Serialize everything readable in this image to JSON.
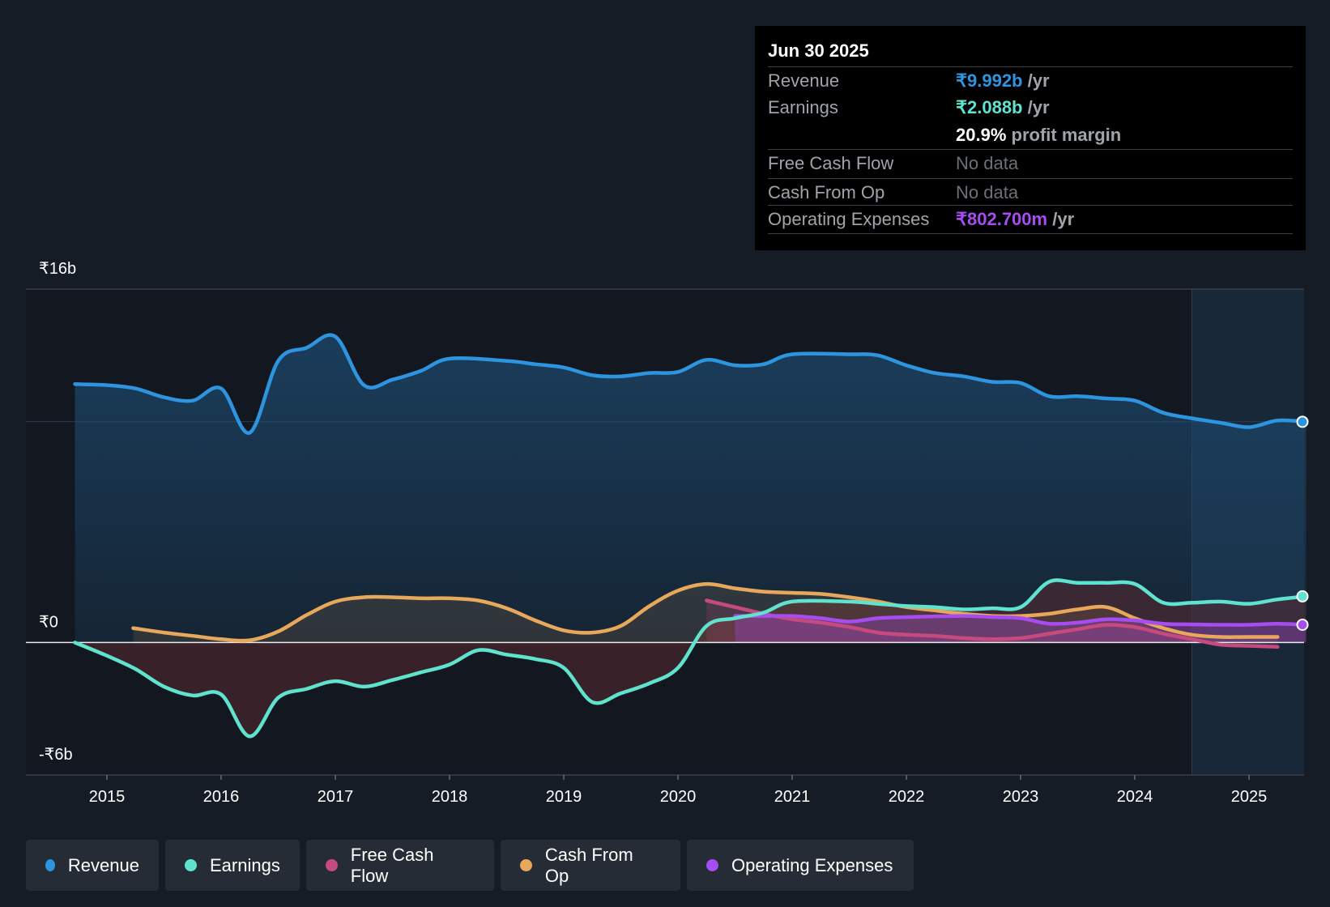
{
  "tooltip": {
    "date": "Jun 30 2025",
    "rows": [
      {
        "label": "Revenue",
        "value": "₹9.992b",
        "unit": "/yr",
        "color": "#2d95e0"
      },
      {
        "label": "Earnings",
        "value": "₹2.088b",
        "unit": "/yr",
        "color": "#5fe3cf"
      },
      {
        "label": "",
        "value": "20.9%",
        "unit": "profit margin",
        "color": "#ffffff"
      },
      {
        "label": "Free Cash Flow",
        "value": "No data",
        "unit": ""
      },
      {
        "label": "Cash From Op",
        "value": "No data",
        "unit": ""
      },
      {
        "label": "Operating Expenses",
        "value": "₹802.700m",
        "unit": "/yr",
        "color": "#a64cf0"
      }
    ]
  },
  "legend": [
    {
      "label": "Revenue",
      "color": "#2d95e0"
    },
    {
      "label": "Earnings",
      "color": "#5fe3cf"
    },
    {
      "label": "Free Cash Flow",
      "color": "#c74a7e"
    },
    {
      "label": "Cash From Op",
      "color": "#e8a85b"
    },
    {
      "label": "Operating Expenses",
      "color": "#a64cf0"
    }
  ],
  "chart_data": {
    "type": "line",
    "y_tick_labels": [
      "₹16b",
      "₹0",
      "-₹6b"
    ],
    "ylim": [
      -6,
      16
    ],
    "xlim": [
      2014.55,
      2025.5
    ],
    "x_ticks": [
      2015,
      2016,
      2017,
      2018,
      2019,
      2020,
      2021,
      2022,
      2023,
      2024,
      2025
    ],
    "x_tick_labels": [
      "2015",
      "2016",
      "2017",
      "2018",
      "2019",
      "2020",
      "2021",
      "2022",
      "2023",
      "2024",
      "2025"
    ],
    "forecast_region_start": 2024.5,
    "series": [
      {
        "name": "Revenue",
        "color": "#2d95e0",
        "points": [
          [
            2014.72,
            11.7
          ],
          [
            2015.0,
            11.65
          ],
          [
            2015.25,
            11.5
          ],
          [
            2015.5,
            11.1
          ],
          [
            2015.75,
            10.95
          ],
          [
            2016.0,
            11.5
          ],
          [
            2016.25,
            9.5
          ],
          [
            2016.5,
            12.75
          ],
          [
            2016.75,
            13.35
          ],
          [
            2017.0,
            13.85
          ],
          [
            2017.25,
            11.65
          ],
          [
            2017.5,
            11.9
          ],
          [
            2017.75,
            12.3
          ],
          [
            2018.0,
            12.85
          ],
          [
            2018.5,
            12.75
          ],
          [
            2018.75,
            12.6
          ],
          [
            2019.0,
            12.45
          ],
          [
            2019.25,
            12.1
          ],
          [
            2019.5,
            12.05
          ],
          [
            2019.75,
            12.2
          ],
          [
            2020.0,
            12.25
          ],
          [
            2020.25,
            12.8
          ],
          [
            2020.5,
            12.55
          ],
          [
            2020.75,
            12.6
          ],
          [
            2021.0,
            13.05
          ],
          [
            2021.5,
            13.05
          ],
          [
            2021.75,
            13.0
          ],
          [
            2022.0,
            12.55
          ],
          [
            2022.25,
            12.2
          ],
          [
            2022.5,
            12.05
          ],
          [
            2022.75,
            11.8
          ],
          [
            2023.0,
            11.75
          ],
          [
            2023.25,
            11.15
          ],
          [
            2023.5,
            11.15
          ],
          [
            2023.75,
            11.05
          ],
          [
            2024.0,
            10.95
          ],
          [
            2024.25,
            10.4
          ],
          [
            2024.5,
            10.15
          ],
          [
            2024.75,
            9.95
          ],
          [
            2025.0,
            9.75
          ],
          [
            2025.25,
            10.05
          ],
          [
            2025.5,
            9.992
          ]
        ]
      },
      {
        "name": "Earnings",
        "color": "#5fe3cf",
        "points": [
          [
            2014.72,
            0.0
          ],
          [
            2015.0,
            -0.6
          ],
          [
            2015.25,
            -1.2
          ],
          [
            2015.5,
            -2.0
          ],
          [
            2015.75,
            -2.4
          ],
          [
            2016.0,
            -2.35
          ],
          [
            2016.25,
            -4.25
          ],
          [
            2016.5,
            -2.5
          ],
          [
            2016.75,
            -2.1
          ],
          [
            2017.0,
            -1.75
          ],
          [
            2017.25,
            -2.0
          ],
          [
            2017.5,
            -1.7
          ],
          [
            2017.75,
            -1.35
          ],
          [
            2018.0,
            -1.0
          ],
          [
            2018.25,
            -0.35
          ],
          [
            2018.5,
            -0.55
          ],
          [
            2018.75,
            -0.75
          ],
          [
            2019.0,
            -1.15
          ],
          [
            2019.25,
            -2.7
          ],
          [
            2019.5,
            -2.3
          ],
          [
            2019.75,
            -1.85
          ],
          [
            2020.0,
            -1.15
          ],
          [
            2020.25,
            0.75
          ],
          [
            2020.5,
            1.1
          ],
          [
            2020.75,
            1.35
          ],
          [
            2021.0,
            1.85
          ],
          [
            2021.5,
            1.85
          ],
          [
            2021.75,
            1.75
          ],
          [
            2022.0,
            1.65
          ],
          [
            2022.25,
            1.6
          ],
          [
            2022.5,
            1.5
          ],
          [
            2022.75,
            1.55
          ],
          [
            2023.0,
            1.6
          ],
          [
            2023.25,
            2.75
          ],
          [
            2023.5,
            2.7
          ],
          [
            2023.75,
            2.7
          ],
          [
            2024.0,
            2.65
          ],
          [
            2024.25,
            1.8
          ],
          [
            2024.5,
            1.8
          ],
          [
            2024.75,
            1.85
          ],
          [
            2025.0,
            1.75
          ],
          [
            2025.25,
            1.95
          ],
          [
            2025.5,
            2.088
          ]
        ]
      },
      {
        "name": "Free Cash Flow",
        "color": "#c74a7e",
        "points": [
          [
            2020.25,
            1.9
          ],
          [
            2020.5,
            1.6
          ],
          [
            2020.75,
            1.3
          ],
          [
            2021.0,
            1.05
          ],
          [
            2021.25,
            0.9
          ],
          [
            2021.5,
            0.7
          ],
          [
            2021.75,
            0.45
          ],
          [
            2022.0,
            0.35
          ],
          [
            2022.25,
            0.3
          ],
          [
            2022.5,
            0.2
          ],
          [
            2022.75,
            0.15
          ],
          [
            2023.0,
            0.2
          ],
          [
            2023.25,
            0.4
          ],
          [
            2023.5,
            0.6
          ],
          [
            2023.75,
            0.8
          ],
          [
            2024.0,
            0.7
          ],
          [
            2024.25,
            0.4
          ],
          [
            2024.5,
            0.15
          ],
          [
            2024.75,
            -0.1
          ],
          [
            2025.0,
            -0.15
          ],
          [
            2025.25,
            -0.2
          ]
        ]
      },
      {
        "name": "Cash From Op",
        "color": "#e8a85b",
        "points": [
          [
            2015.23,
            0.65
          ],
          [
            2015.5,
            0.45
          ],
          [
            2015.75,
            0.3
          ],
          [
            2016.0,
            0.15
          ],
          [
            2016.25,
            0.1
          ],
          [
            2016.5,
            0.5
          ],
          [
            2016.75,
            1.25
          ],
          [
            2017.0,
            1.85
          ],
          [
            2017.25,
            2.05
          ],
          [
            2017.5,
            2.05
          ],
          [
            2017.75,
            2.0
          ],
          [
            2018.0,
            2.0
          ],
          [
            2018.25,
            1.9
          ],
          [
            2018.5,
            1.55
          ],
          [
            2018.75,
            1.0
          ],
          [
            2019.0,
            0.55
          ],
          [
            2019.25,
            0.45
          ],
          [
            2019.5,
            0.75
          ],
          [
            2019.75,
            1.65
          ],
          [
            2020.0,
            2.35
          ],
          [
            2020.25,
            2.65
          ],
          [
            2020.5,
            2.45
          ],
          [
            2020.75,
            2.3
          ],
          [
            2021.0,
            2.25
          ],
          [
            2021.25,
            2.2
          ],
          [
            2021.5,
            2.05
          ],
          [
            2021.75,
            1.85
          ],
          [
            2022.0,
            1.6
          ],
          [
            2022.25,
            1.45
          ],
          [
            2022.5,
            1.3
          ],
          [
            2022.75,
            1.2
          ],
          [
            2023.0,
            1.2
          ],
          [
            2023.25,
            1.3
          ],
          [
            2023.5,
            1.5
          ],
          [
            2023.75,
            1.6
          ],
          [
            2024.0,
            1.1
          ],
          [
            2024.25,
            0.65
          ],
          [
            2024.5,
            0.35
          ],
          [
            2024.75,
            0.25
          ],
          [
            2025.0,
            0.25
          ],
          [
            2025.25,
            0.25
          ]
        ]
      },
      {
        "name": "Operating Expenses",
        "color": "#a64cf0",
        "points": [
          [
            2020.5,
            1.2
          ],
          [
            2020.75,
            1.2
          ],
          [
            2021.0,
            1.2
          ],
          [
            2021.25,
            1.1
          ],
          [
            2021.5,
            0.95
          ],
          [
            2021.75,
            1.1
          ],
          [
            2022.0,
            1.15
          ],
          [
            2022.5,
            1.2
          ],
          [
            2022.75,
            1.15
          ],
          [
            2023.0,
            1.1
          ],
          [
            2023.25,
            0.85
          ],
          [
            2023.5,
            0.9
          ],
          [
            2023.75,
            1.05
          ],
          [
            2024.0,
            1.0
          ],
          [
            2024.25,
            0.85
          ],
          [
            2024.5,
            0.82
          ],
          [
            2024.75,
            0.8
          ],
          [
            2025.0,
            0.8
          ],
          [
            2025.25,
            0.85
          ],
          [
            2025.5,
            0.8027
          ]
        ]
      }
    ]
  }
}
